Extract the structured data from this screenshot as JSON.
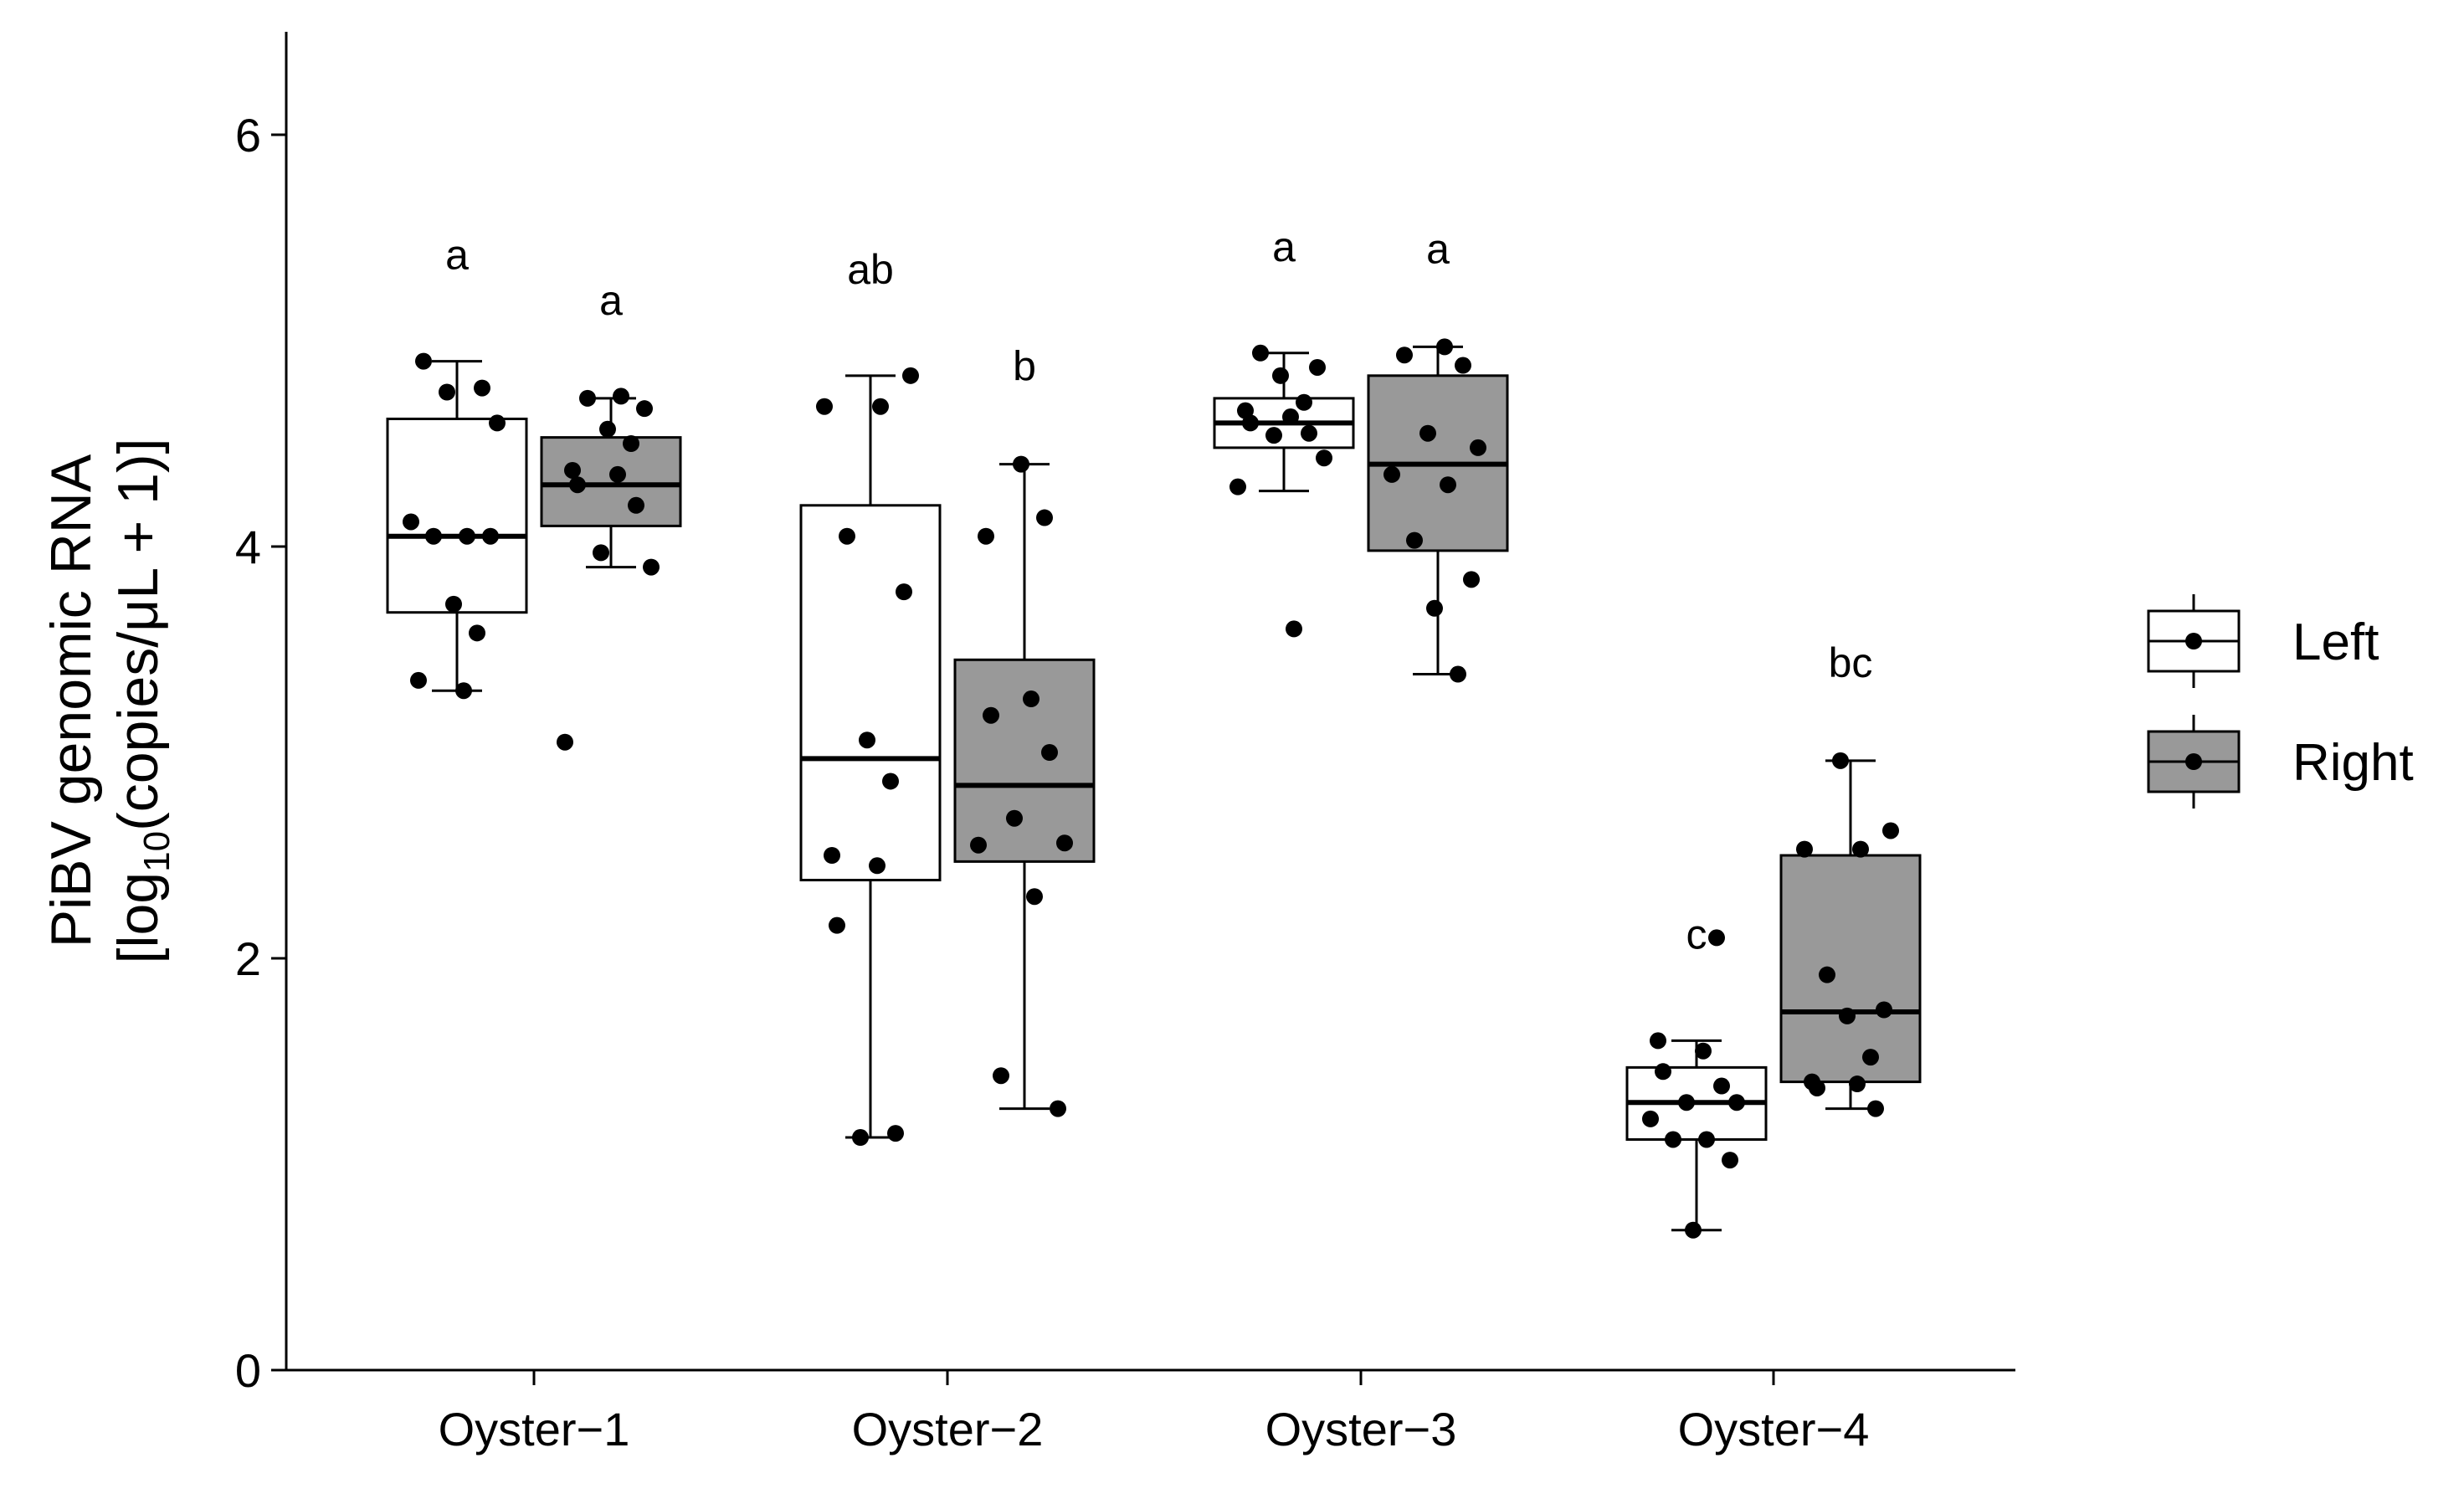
{
  "chart_data": {
    "type": "boxplot",
    "ylabel_line1": "PiBV genomic RNA",
    "ylabel_line2": {
      "pre": "[log",
      "sub": "10",
      "post": "(copies/μL + 1)]"
    },
    "ylim": [
      0,
      6.5
    ],
    "yticks": [
      0,
      2,
      4,
      6
    ],
    "categories": [
      "Oyster−1",
      "Oyster−2",
      "Oyster−3",
      "Oyster−4"
    ],
    "legend": {
      "position": "right",
      "entries": [
        "Left",
        "Right"
      ]
    },
    "colors": {
      "Left": "#ffffff",
      "Right": "#999999"
    },
    "series": [
      {
        "name": "Left",
        "boxes": [
          {
            "category": "Oyster−1",
            "min": 3.3,
            "q1": 3.68,
            "median": 4.05,
            "q3": 4.62,
            "max": 4.9,
            "label": "a",
            "points": [
              4.9,
              4.77,
              4.75,
              4.6,
              4.12,
              4.05,
              4.05,
              4.05,
              3.72,
              3.58,
              3.35,
              3.3
            ]
          },
          {
            "category": "Oyster−2",
            "min": 1.13,
            "q1": 2.38,
            "median": 2.97,
            "q3": 4.2,
            "max": 4.83,
            "label": "ab",
            "points": [
              4.83,
              4.68,
              4.68,
              4.05,
              3.78,
              3.06,
              2.86,
              2.5,
              2.45,
              2.16,
              1.15,
              1.13
            ]
          },
          {
            "category": "Oyster−3",
            "min": 4.27,
            "q1": 4.48,
            "median": 4.6,
            "q3": 4.72,
            "max": 4.94,
            "label": "a",
            "points": [
              4.94,
              4.87,
              4.83,
              4.7,
              4.66,
              4.63,
              4.6,
              4.55,
              4.54,
              4.43,
              4.29,
              3.6
            ]
          },
          {
            "category": "Oyster−4",
            "min": 0.68,
            "q1": 1.12,
            "median": 1.3,
            "q3": 1.47,
            "max": 1.6,
            "label": "c",
            "points": [
              2.1,
              1.6,
              1.55,
              1.45,
              1.38,
              1.3,
              1.3,
              1.22,
              1.12,
              1.12,
              1.02,
              0.68
            ]
          }
        ]
      },
      {
        "name": "Right",
        "boxes": [
          {
            "category": "Oyster−1",
            "min": 3.9,
            "q1": 4.1,
            "median": 4.3,
            "q3": 4.53,
            "max": 4.72,
            "label": "a",
            "points": [
              4.73,
              4.72,
              4.67,
              4.57,
              4.5,
              4.37,
              4.35,
              4.3,
              4.2,
              3.97,
              3.9,
              3.05
            ]
          },
          {
            "category": "Oyster−2",
            "min": 1.27,
            "q1": 2.47,
            "median": 2.84,
            "q3": 3.45,
            "max": 4.4,
            "label": "b",
            "points": [
              4.4,
              4.14,
              4.05,
              3.26,
              3.18,
              3.0,
              2.68,
              2.56,
              2.55,
              2.3,
              1.43,
              1.27
            ]
          },
          {
            "category": "Oyster−3",
            "min": 3.38,
            "q1": 3.98,
            "median": 4.4,
            "q3": 4.83,
            "max": 4.97,
            "label": "a",
            "points": [
              4.97,
              4.93,
              4.88,
              4.55,
              4.48,
              4.35,
              4.3,
              4.03,
              3.84,
              3.7,
              3.38
            ]
          },
          {
            "category": "Oyster−4",
            "min": 1.27,
            "q1": 1.4,
            "median": 1.74,
            "q3": 2.5,
            "max": 2.96,
            "label": "bc",
            "points": [
              2.96,
              2.62,
              2.53,
              2.53,
              1.92,
              1.75,
              1.72,
              1.52,
              1.4,
              1.39,
              1.37,
              1.27
            ]
          }
        ]
      }
    ]
  }
}
